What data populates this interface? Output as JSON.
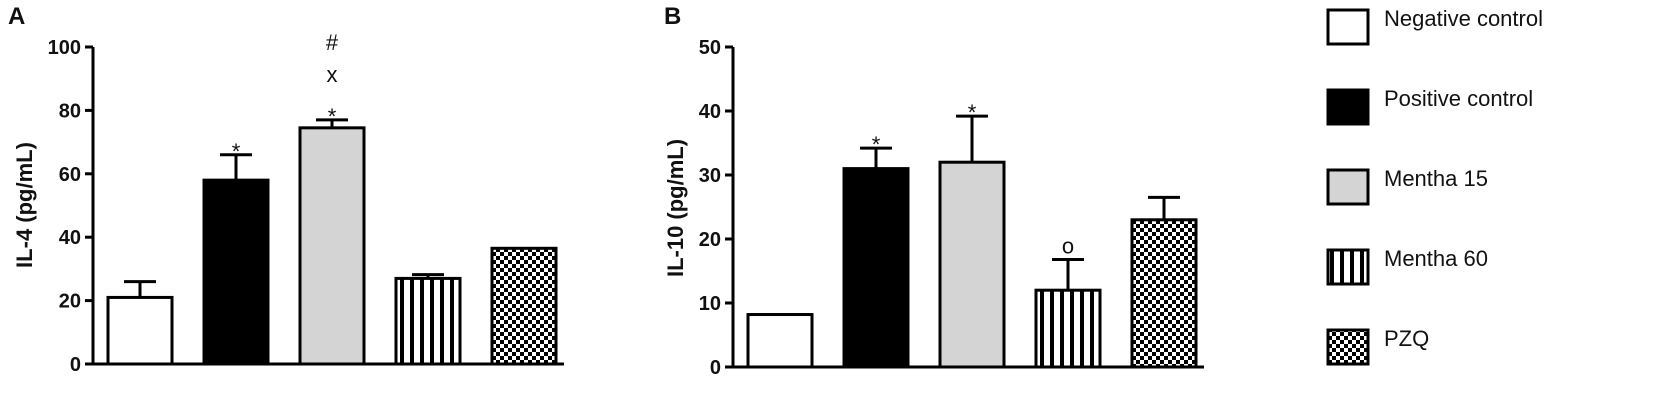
{
  "patterns": {
    "Negative control": "blank",
    "Positive control": "solid-black",
    "Mentha 15": "solid-grey",
    "Mentha 60": "vertical-stripes",
    "PZQ": "checker"
  },
  "colors": {
    "grey_fill": "#d4d4d4",
    "black": "#000000",
    "white": "#ffffff"
  },
  "legend": [
    {
      "label": "Negative control",
      "pattern": "blank"
    },
    {
      "label": "Positive control",
      "pattern": "solid-black"
    },
    {
      "label": "Mentha 15",
      "pattern": "solid-grey"
    },
    {
      "label": "Mentha 60",
      "pattern": "vertical-stripes"
    },
    {
      "label": "PZQ",
      "pattern": "checker"
    }
  ],
  "chart_data": [
    {
      "panel": "A",
      "type": "bar",
      "ylabel": "IL-4 (pg/mL)",
      "ylim": [
        0,
        100
      ],
      "yticks": [
        0,
        20,
        40,
        60,
        80,
        100
      ],
      "categories": [
        "Negative control",
        "Positive control",
        "Mentha 15",
        "Mentha 60",
        "PZQ"
      ],
      "values": [
        21,
        58,
        74.5,
        27,
        36.5
      ],
      "errors": [
        5,
        8,
        2.5,
        1.2,
        0
      ],
      "annotations": [
        {
          "category": "Positive control",
          "labels": [
            "*"
          ]
        },
        {
          "category": "Mentha 15",
          "labels": [
            "*",
            "x",
            "#"
          ]
        }
      ]
    },
    {
      "panel": "B",
      "type": "bar",
      "ylabel": "IL-10 (pg/mL)",
      "ylim": [
        0,
        50
      ],
      "yticks": [
        0,
        10,
        20,
        30,
        40,
        50
      ],
      "categories": [
        "Negative control",
        "Positive control",
        "Mentha 15",
        "Mentha 60",
        "PZQ"
      ],
      "values": [
        8.2,
        31,
        32,
        12,
        23
      ],
      "errors": [
        0,
        3.2,
        7.2,
        4.8,
        3.5
      ],
      "annotations": [
        {
          "category": "Positive control",
          "labels": [
            "*"
          ]
        },
        {
          "category": "Mentha 15",
          "labels": [
            "*"
          ]
        },
        {
          "category": "Mentha 60",
          "labels": [
            "o"
          ]
        }
      ]
    }
  ]
}
